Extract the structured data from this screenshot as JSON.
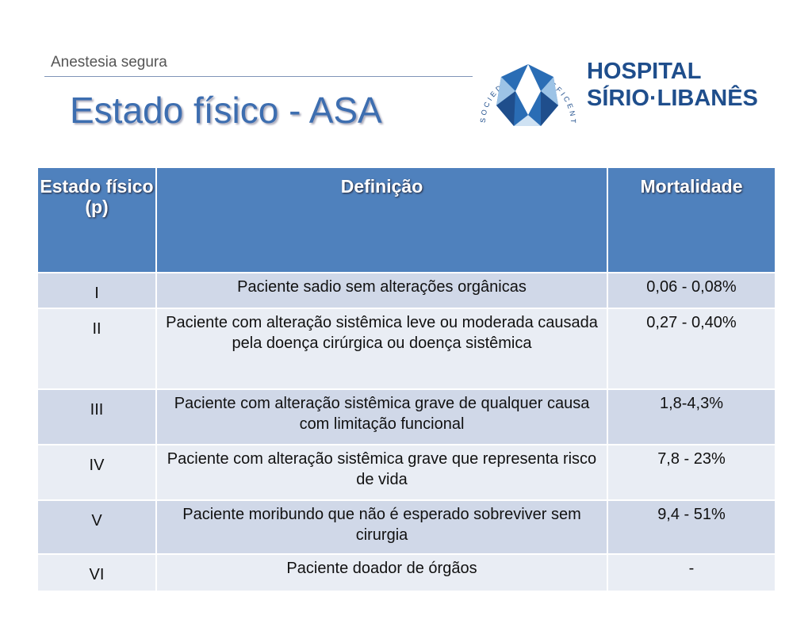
{
  "header": {
    "subtitle": "Anestesia segura",
    "title": "Estado físico - ASA"
  },
  "logo": {
    "arc_text": "SOCIEDADE BENEFICENTE DE SENHORAS",
    "name_line1": "HOSPITAL",
    "name_line2": "SÍRIO·LIBANÊS"
  },
  "table": {
    "columns": [
      "Estado físico (p)",
      "Definição",
      "Mortalidade"
    ],
    "rows": [
      [
        "I",
        "Paciente sadio sem alterações orgânicas",
        "0,06 - 0,08%"
      ],
      [
        "II",
        "Paciente com alteração sistêmica leve ou moderada causada pela doença cirúrgica ou doença sistêmica",
        "0,27 - 0,40%"
      ],
      [
        "III",
        "Paciente com alteração sistêmica grave de qualquer causa com limitação funcional",
        "1,8-4,3%"
      ],
      [
        "IV",
        "Paciente com alteração sistêmica grave que representa risco de vida",
        "7,8 - 23%"
      ],
      [
        "V",
        "Paciente moribundo que não é esperado sobreviver sem cirurgia",
        "9,4 - 51%"
      ],
      [
        "VI",
        "Paciente doador de órgãos",
        "-"
      ]
    ]
  }
}
